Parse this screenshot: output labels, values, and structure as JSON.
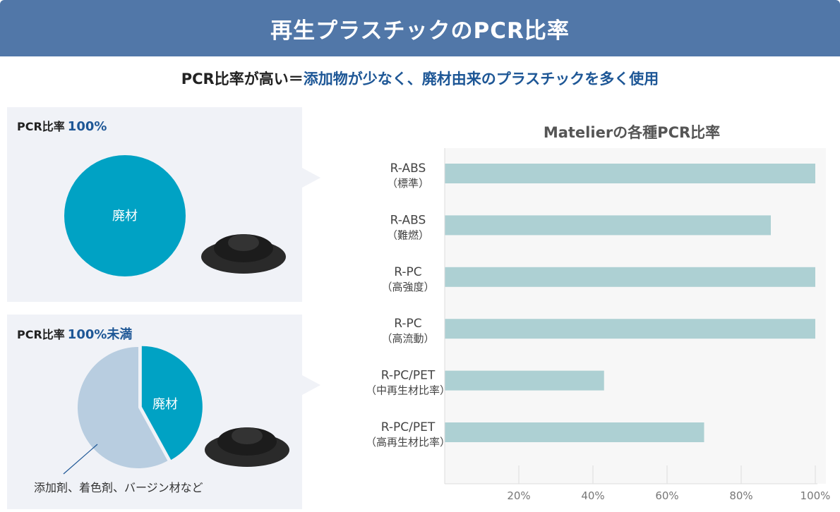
{
  "header": {
    "title": "再生プラスチックのPCR比率"
  },
  "subtitle": {
    "prefix": "PCR比率が高い＝",
    "highlight": "添加物が少なく、廃材由来のプラスチックを多く使用"
  },
  "panel_100": {
    "label": "PCR比率",
    "value": "100%",
    "pie_label": "廃材",
    "waste_fraction": 1.0
  },
  "panel_under": {
    "label": "PCR比率",
    "value": "100%未満",
    "pie_label": "廃材",
    "other_label": "添加剤、着色剤、バージン材など",
    "waste_fraction": 0.42
  },
  "colors": {
    "header_bg": "#5177a8",
    "accent_blue": "#1e5796",
    "waste": "#00a2c4",
    "other": "#b8cde0",
    "bar": "#add0d3",
    "panel_bg": "#f0f2f7"
  },
  "chart_data": {
    "type": "bar",
    "orientation": "horizontal",
    "title": "Matelierの各種PCR比率",
    "categories": [
      {
        "name": "R-ABS",
        "sub": "（標準）"
      },
      {
        "name": "R-ABS",
        "sub": "（難燃）"
      },
      {
        "name": "R-PC",
        "sub": "（高強度）"
      },
      {
        "name": "R-PC",
        "sub": "（高流動）"
      },
      {
        "name": "R-PC/PET",
        "sub": "（中再生材比率）"
      },
      {
        "name": "R-PC/PET",
        "sub": "（高再生材比率）"
      }
    ],
    "values": [
      100,
      88,
      100,
      100,
      43,
      70
    ],
    "xlim": [
      0,
      100
    ],
    "xticks": [
      "20%",
      "40%",
      "60%",
      "80%",
      "100%"
    ],
    "xtick_values": [
      20,
      40,
      60,
      80,
      100
    ],
    "grid": true
  }
}
